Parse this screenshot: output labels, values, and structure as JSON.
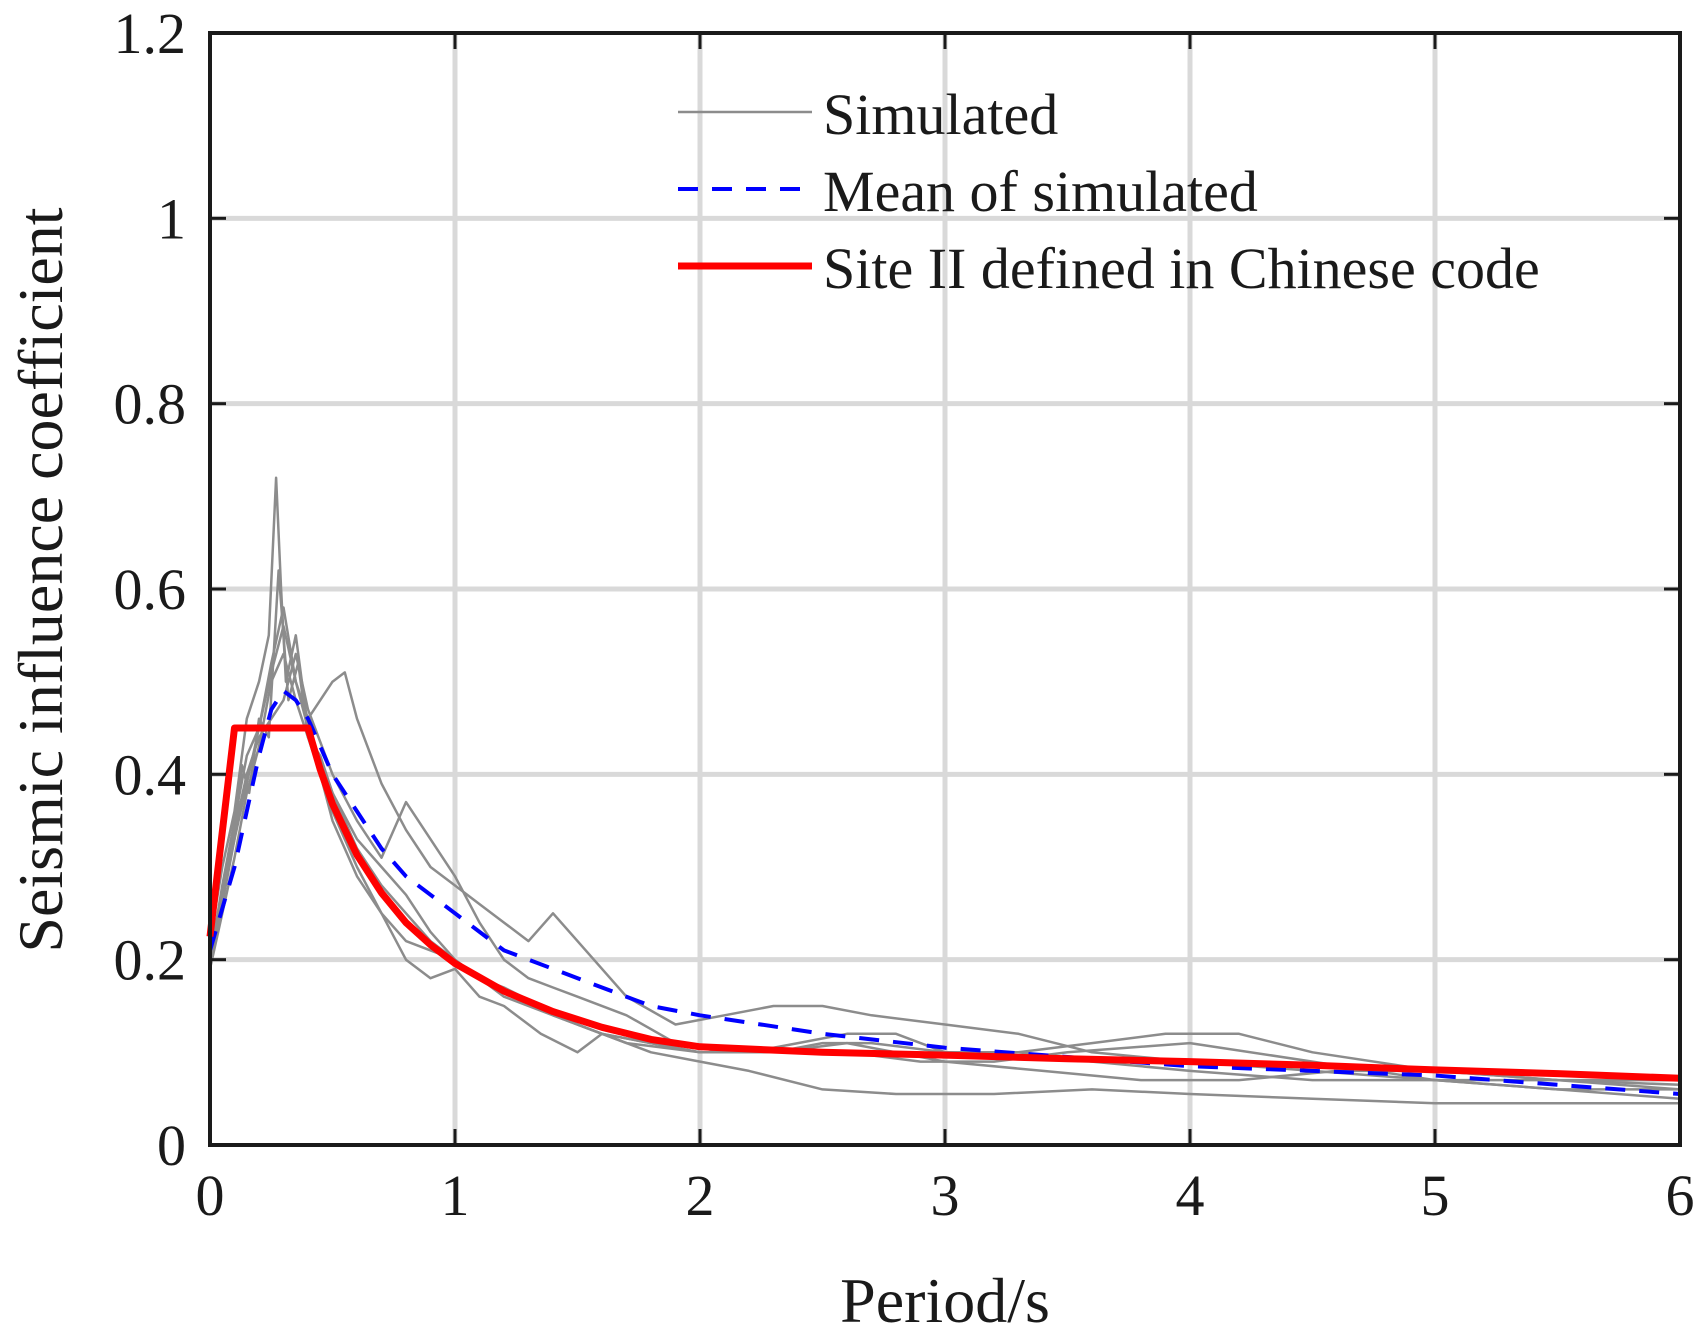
{
  "chart_data": {
    "type": "line",
    "title": "",
    "xlabel": "Period/s",
    "ylabel": "Seismic influence coefficient",
    "xlim": [
      0,
      6
    ],
    "ylim": [
      0,
      1.2
    ],
    "xticks": [
      0,
      1,
      2,
      3,
      4,
      5,
      6
    ],
    "yticks": [
      0,
      0.2,
      0.4,
      0.6,
      0.8,
      1,
      1.2
    ],
    "xtick_labels": [
      "0",
      "1",
      "2",
      "3",
      "4",
      "5",
      "6"
    ],
    "ytick_labels": [
      "0",
      "0.2",
      "0.4",
      "0.6",
      "0.8",
      "1",
      "1.2"
    ],
    "grid": true,
    "legend_position": "top-right",
    "legend": [
      "Simulated",
      "Mean of simulated",
      "Site II defined in Chinese code"
    ],
    "colors": {
      "simulated": "#8c8c8c",
      "mean": "#0000ff",
      "code": "#ff0000",
      "grid": "#d9d9d9",
      "axes": "#1a1a1a"
    },
    "series": [
      {
        "name": "Simulated",
        "style": "solid-thin",
        "x": [
          0,
          0.05,
          0.1,
          0.13,
          0.16,
          0.2,
          0.24,
          0.28,
          0.32,
          0.36,
          0.4,
          0.45,
          0.5,
          0.6,
          0.7,
          0.8,
          0.9,
          1.0,
          1.1,
          1.2,
          1.35,
          1.5,
          1.7,
          2.0,
          2.2,
          2.4,
          2.6,
          2.8,
          3.0,
          3.3,
          3.6,
          4.0,
          4.5,
          5.0,
          5.5,
          6.0
        ],
        "y": [
          0.2,
          0.26,
          0.33,
          0.41,
          0.38,
          0.46,
          0.44,
          0.62,
          0.48,
          0.52,
          0.44,
          0.42,
          0.38,
          0.33,
          0.3,
          0.27,
          0.23,
          0.2,
          0.18,
          0.17,
          0.15,
          0.13,
          0.11,
          0.1,
          0.1,
          0.11,
          0.12,
          0.12,
          0.1,
          0.1,
          0.09,
          0.08,
          0.07,
          0.07,
          0.06,
          0.05
        ]
      },
      {
        "name": "Simulated",
        "style": "solid-thin",
        "x": [
          0,
          0.05,
          0.1,
          0.15,
          0.2,
          0.24,
          0.27,
          0.29,
          0.31,
          0.35,
          0.4,
          0.45,
          0.5,
          0.6,
          0.7,
          0.8,
          0.9,
          1.0,
          1.1,
          1.2,
          1.35,
          1.5,
          1.6,
          1.8,
          2.0,
          2.3,
          2.6,
          2.9,
          3.2,
          3.5,
          4.0,
          4.5,
          5.0,
          5.5,
          6.0
        ],
        "y": [
          0.22,
          0.3,
          0.36,
          0.46,
          0.5,
          0.55,
          0.72,
          0.6,
          0.5,
          0.55,
          0.45,
          0.4,
          0.36,
          0.3,
          0.25,
          0.2,
          0.18,
          0.19,
          0.16,
          0.15,
          0.12,
          0.1,
          0.12,
          0.11,
          0.1,
          0.1,
          0.1,
          0.09,
          0.09,
          0.1,
          0.11,
          0.09,
          0.07,
          0.06,
          0.06
        ]
      },
      {
        "name": "Simulated",
        "style": "solid-thin",
        "x": [
          0,
          0.05,
          0.1,
          0.15,
          0.2,
          0.25,
          0.3,
          0.35,
          0.4,
          0.5,
          0.55,
          0.6,
          0.7,
          0.8,
          0.9,
          1.0,
          1.1,
          1.2,
          1.3,
          1.4,
          1.5,
          1.7,
          1.9,
          2.1,
          2.3,
          2.5,
          2.7,
          3.0,
          3.3,
          3.6,
          4.0,
          4.5,
          5.0,
          5.5,
          6.0
        ],
        "y": [
          0.2,
          0.28,
          0.35,
          0.42,
          0.45,
          0.52,
          0.58,
          0.5,
          0.46,
          0.5,
          0.51,
          0.46,
          0.39,
          0.34,
          0.3,
          0.28,
          0.26,
          0.24,
          0.22,
          0.25,
          0.22,
          0.16,
          0.13,
          0.14,
          0.15,
          0.15,
          0.14,
          0.13,
          0.12,
          0.1,
          0.09,
          0.08,
          0.07,
          0.07,
          0.07
        ]
      },
      {
        "name": "Simulated",
        "style": "solid-thin",
        "x": [
          0,
          0.05,
          0.1,
          0.15,
          0.2,
          0.3,
          0.35,
          0.4,
          0.5,
          0.6,
          0.7,
          0.8,
          0.9,
          1.0,
          1.1,
          1.2,
          1.3,
          1.4,
          1.5,
          1.7,
          1.9,
          2.1,
          2.3,
          2.5,
          2.7,
          3.0,
          3.3,
          3.6,
          3.9,
          4.2,
          4.5,
          5.0,
          5.5,
          6.0
        ],
        "y": [
          0.21,
          0.27,
          0.34,
          0.4,
          0.44,
          0.48,
          0.53,
          0.47,
          0.4,
          0.35,
          0.31,
          0.37,
          0.33,
          0.29,
          0.24,
          0.2,
          0.18,
          0.17,
          0.16,
          0.14,
          0.11,
          0.1,
          0.1,
          0.11,
          0.11,
          0.1,
          0.1,
          0.11,
          0.12,
          0.12,
          0.1,
          0.08,
          0.07,
          0.06
        ]
      },
      {
        "name": "Simulated",
        "style": "solid-thin",
        "x": [
          0,
          0.05,
          0.1,
          0.15,
          0.2,
          0.25,
          0.3,
          0.35,
          0.4,
          0.45,
          0.5,
          0.6,
          0.7,
          0.8,
          0.9,
          1.0,
          1.1,
          1.25,
          1.4,
          1.6,
          1.8,
          2.0,
          2.2,
          2.5,
          2.8,
          3.2,
          3.6,
          4.0,
          4.5,
          5.0,
          5.5,
          6.0
        ],
        "y": [
          0.19,
          0.25,
          0.31,
          0.38,
          0.43,
          0.5,
          0.53,
          0.48,
          0.44,
          0.4,
          0.35,
          0.29,
          0.25,
          0.22,
          0.21,
          0.2,
          0.18,
          0.16,
          0.14,
          0.12,
          0.1,
          0.09,
          0.08,
          0.06,
          0.055,
          0.055,
          0.06,
          0.055,
          0.05,
          0.045,
          0.045,
          0.045
        ]
      },
      {
        "name": "Simulated",
        "style": "solid-thin",
        "x": [
          0,
          0.05,
          0.1,
          0.15,
          0.2,
          0.25,
          0.3,
          0.35,
          0.4,
          0.5,
          0.6,
          0.7,
          0.8,
          0.9,
          1.0,
          1.2,
          1.4,
          1.6,
          1.8,
          2.0,
          2.3,
          2.6,
          3.0,
          3.4,
          3.8,
          4.2,
          4.6,
          5.0,
          5.5,
          6.0
        ],
        "y": [
          0.2,
          0.27,
          0.33,
          0.39,
          0.45,
          0.51,
          0.56,
          0.5,
          0.45,
          0.38,
          0.32,
          0.28,
          0.25,
          0.22,
          0.2,
          0.16,
          0.14,
          0.12,
          0.11,
          0.1,
          0.1,
          0.11,
          0.09,
          0.08,
          0.07,
          0.07,
          0.08,
          0.08,
          0.07,
          0.065
        ]
      },
      {
        "name": "Mean of simulated",
        "style": "dashed",
        "x": [
          0,
          0.1,
          0.2,
          0.25,
          0.3,
          0.35,
          0.4,
          0.45,
          0.5,
          0.6,
          0.7,
          0.8,
          0.9,
          1.0,
          1.2,
          1.4,
          1.6,
          1.8,
          2.0,
          2.5,
          3.0,
          3.5,
          4.0,
          4.5,
          5.0,
          5.5,
          6.0
        ],
        "y": [
          0.21,
          0.3,
          0.42,
          0.47,
          0.49,
          0.48,
          0.46,
          0.43,
          0.4,
          0.36,
          0.32,
          0.29,
          0.27,
          0.25,
          0.21,
          0.19,
          0.17,
          0.15,
          0.14,
          0.12,
          0.105,
          0.095,
          0.085,
          0.08,
          0.075,
          0.065,
          0.055
        ]
      },
      {
        "name": "Site II defined in Chinese code",
        "style": "solid-thick",
        "x": [
          0,
          0.1,
          0.15,
          0.2,
          0.3,
          0.4,
          0.45,
          0.5,
          0.6,
          0.7,
          0.8,
          0.9,
          1.0,
          1.2,
          1.4,
          1.6,
          1.8,
          2.0,
          2.5,
          3.0,
          3.5,
          4.0,
          4.5,
          5.0,
          5.5,
          6.0
        ],
        "y": [
          0.225,
          0.45,
          0.45,
          0.45,
          0.45,
          0.45,
          0.405,
          0.368,
          0.313,
          0.272,
          0.24,
          0.216,
          0.196,
          0.166,
          0.144,
          0.127,
          0.114,
          0.106,
          0.1,
          0.097,
          0.093,
          0.09,
          0.086,
          0.081,
          0.077,
          0.072
        ]
      }
    ]
  }
}
